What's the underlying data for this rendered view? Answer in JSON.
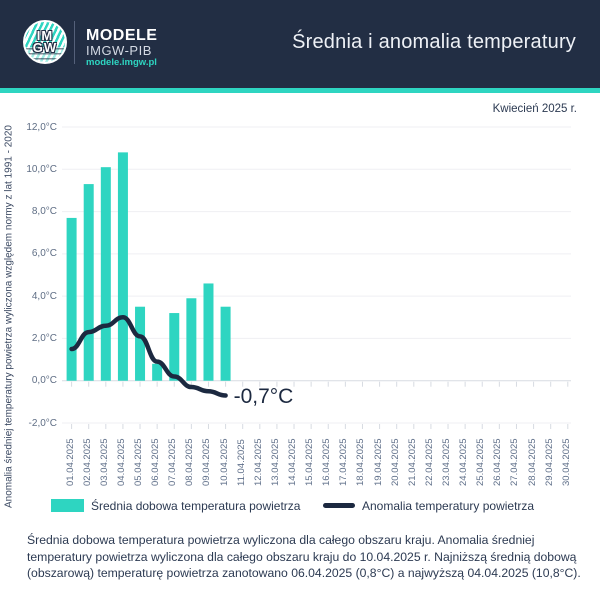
{
  "header": {
    "brand": "MODELE",
    "org": "IMGW-PIB",
    "url": "modele.imgw.pl",
    "logo_monogram_top": "IM",
    "logo_monogram_bottom": "GW",
    "title": "Średnia i anomalia temperatury"
  },
  "colors": {
    "accent_teal": "#2ed5c1",
    "header_navy": "#222e44",
    "line_navy": "#1c2940",
    "gridline": "#efeff3",
    "axis_line": "#d7dbe2",
    "tick_text": "#5f6e85",
    "body_text": "#2c3a52"
  },
  "chart_data": {
    "type": "bar",
    "title": "Średnia i anomalia temperatury",
    "subtitle": "Kwiecień 2025 r.",
    "categories": [
      "01.04.2025",
      "02.04.2025",
      "03.04.2025",
      "04.04.2025",
      "05.04.2025",
      "06.04.2025",
      "07.04.2025",
      "08.04.2025",
      "09.04.2025",
      "10.04.2025",
      "11.04.2025",
      "12.04.2025",
      "13.04.2025",
      "14.04.2025",
      "15.04.2025",
      "16.04.2025",
      "17.04.2025",
      "18.04.2025",
      "19.04.2025",
      "20.04.2025",
      "21.04.2025",
      "22.04.2025",
      "23.04.2025",
      "24.04.2025",
      "25.04.2025",
      "26.04.2025",
      "27.04.2025",
      "28.04.2025",
      "29.04.2025",
      "30.04.2025"
    ],
    "series": [
      {
        "name": "Średnia dobowa temperatura powietrza",
        "type": "bar",
        "color": "#2ed5c1",
        "values": [
          7.7,
          9.3,
          10.1,
          10.8,
          3.5,
          0.8,
          3.2,
          3.9,
          4.6,
          3.5
        ]
      },
      {
        "name": "Anomalia temperatury powietrza",
        "type": "line",
        "color": "#1c2940",
        "values": [
          1.5,
          2.3,
          2.6,
          3.0,
          2.1,
          0.9,
          0.2,
          -0.3,
          -0.5,
          -0.7
        ]
      }
    ],
    "ylabel": "Anomalia średniej temperatury powietrza wyliczona względem normy z lat 1991 - 2020",
    "xlabel": "",
    "ylim": [
      -2,
      12
    ],
    "ytick_step": 2,
    "ytick_suffix": "°C",
    "decimal_separator": ",",
    "grid": true,
    "legend_position": "bottom",
    "annotation": {
      "text": "-0,7°C",
      "x": "10.04.2025",
      "y": -0.7
    }
  },
  "footnote": "Średnia dobowa temperatura powietrza wyliczona dla całego obszaru kraju. Anomalia średniej temperatury powietrza wyliczona dla całego obszaru kraju do 10.04.2025 r. Najniższą średnią dobową (obszarową) temperaturę powietrza zanotowano 06.04.2025 (0,8°C) a najwyższą 04.04.2025 (10,8°C)."
}
